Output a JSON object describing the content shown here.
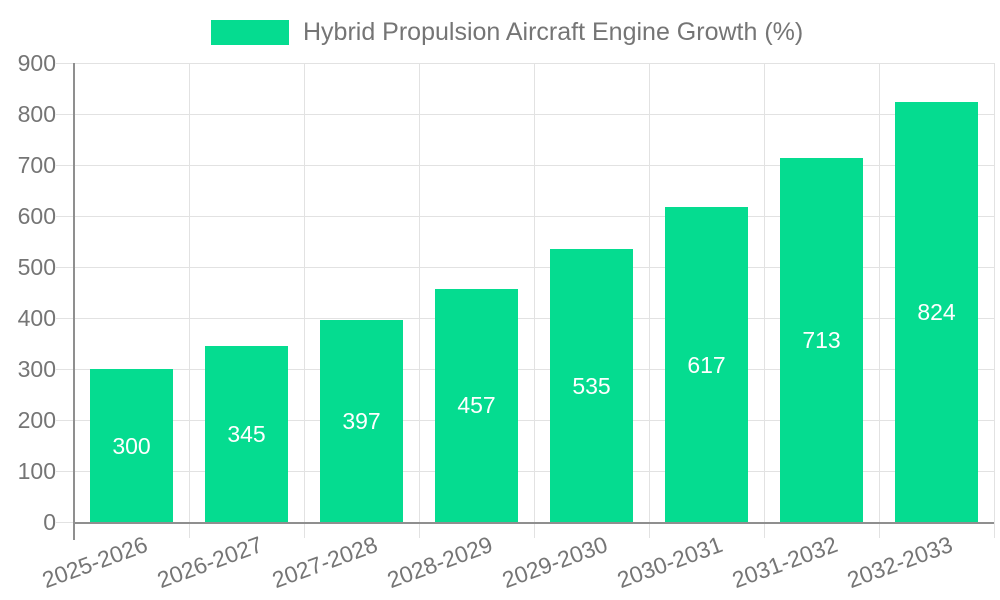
{
  "legend": {
    "label": "Hybrid Propulsion Aircraft Engine Growth (%)"
  },
  "chart_data": {
    "type": "bar",
    "categories": [
      "2025-2026",
      "2026-2027",
      "2027-2028",
      "2028-2029",
      "2029-2030",
      "2030-2031",
      "2031-2032",
      "2032-2033"
    ],
    "values": [
      300,
      345,
      397,
      457,
      535,
      617,
      713,
      824
    ],
    "title": "Hybrid Propulsion Aircraft Engine Growth (%)",
    "xlabel": "",
    "ylabel": "",
    "ylim": [
      0,
      900
    ],
    "ytick_step": 100,
    "ytick_labels": [
      "0",
      "100",
      "200",
      "300",
      "400",
      "500",
      "600",
      "700",
      "800",
      "900"
    ],
    "grid": true,
    "bar_value_labels_shown": true,
    "legend_position": "top-center",
    "x_label_rotation_deg": -20
  },
  "colors": {
    "bar": "#05dc90",
    "axis": "#8f8f8f",
    "grid": "#e2e2e2",
    "tick_text": "#757575",
    "legend_text": "#757575",
    "value_text": "#ffffff",
    "background": "#ffffff"
  }
}
